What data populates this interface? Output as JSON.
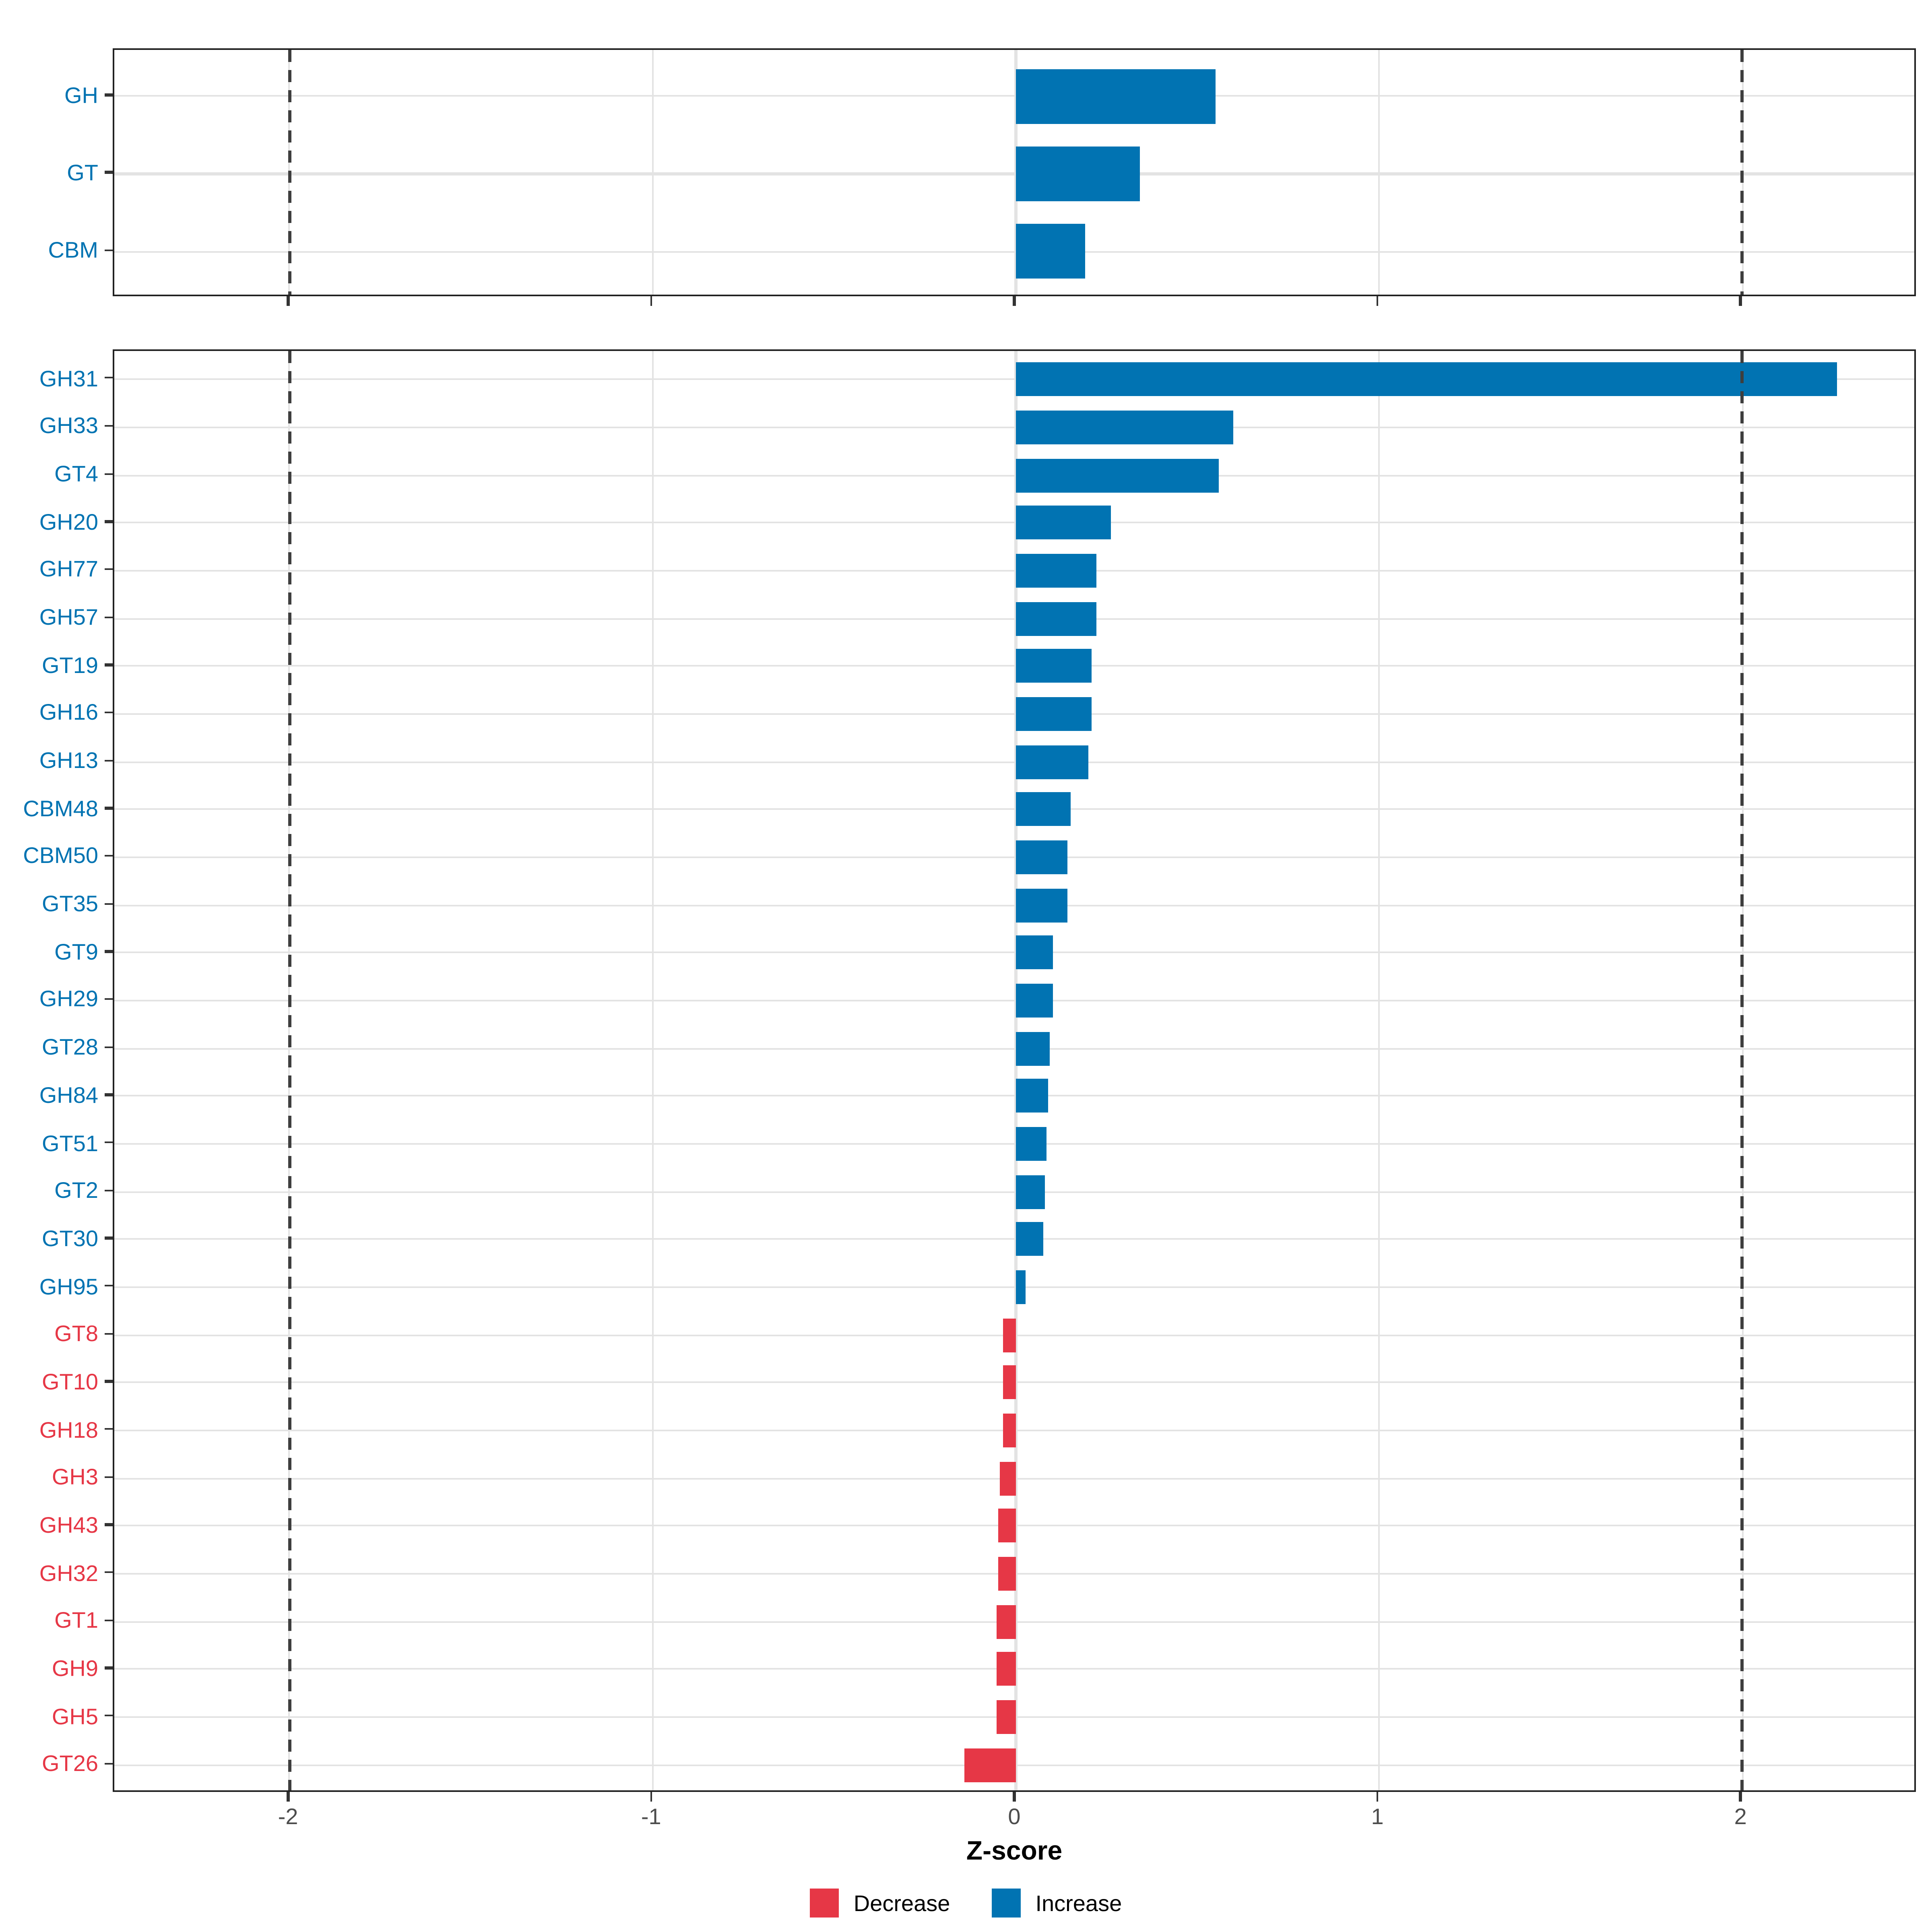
{
  "axis": {
    "title": "Z-score",
    "ticks": [
      -2,
      -1,
      0,
      1,
      2
    ],
    "tick_labels": [
      "-2",
      "-1",
      "0",
      "1",
      "2"
    ],
    "xmin": -2.483,
    "xmax": 2.483,
    "dashed_at": [
      -2,
      2
    ]
  },
  "colors": {
    "increase": "#0173B2",
    "decrease": "#E63746",
    "gridline": "#E3E3E3",
    "dashed_line": "#3E3E3E",
    "panel_border": "#222222",
    "tick_text": "#4D4D4D"
  },
  "legend": {
    "items": [
      {
        "label": "Decrease",
        "color_key": "decrease"
      },
      {
        "label": "Increase",
        "color_key": "increase"
      }
    ]
  },
  "chart_data": [
    {
      "type": "bar",
      "orientation": "horizontal",
      "panel": "cazyme-class-summary",
      "categories": [
        "GH",
        "GT",
        "CBM"
      ],
      "values": [
        0.55,
        0.34,
        0.19
      ],
      "directions": [
        "increase",
        "increase",
        "increase"
      ],
      "xlabel": "Z-score",
      "xlim": [
        -2.483,
        2.483
      ],
      "grid": "major",
      "bar_width_fraction": 0.7
    },
    {
      "type": "bar",
      "orientation": "horizontal",
      "panel": "cazyme-family-detail",
      "categories": [
        "GH31",
        "GH33",
        "GT4",
        "GH20",
        "GH77",
        "GH57",
        "GT19",
        "GH16",
        "GH13",
        "CBM48",
        "CBM50",
        "GT35",
        "GT9",
        "GH29",
        "GT28",
        "GH84",
        "GT51",
        "GT2",
        "GT30",
        "GH95",
        "GT8",
        "GT10",
        "GH18",
        "GH3",
        "GH43",
        "GH32",
        "GT1",
        "GH9",
        "GH5",
        "GT26"
      ],
      "values": [
        2.26,
        0.6,
        0.56,
        0.26,
        0.22,
        0.22,
        0.21,
        0.21,
        0.2,
        0.15,
        0.14,
        0.14,
        0.1,
        0.1,
        0.095,
        0.09,
        0.085,
        0.08,
        0.075,
        0.025,
        -0.035,
        -0.035,
        -0.035,
        -0.045,
        -0.05,
        -0.05,
        -0.055,
        -0.055,
        -0.055,
        -0.14
      ],
      "directions": [
        "increase",
        "increase",
        "increase",
        "increase",
        "increase",
        "increase",
        "increase",
        "increase",
        "increase",
        "increase",
        "increase",
        "increase",
        "increase",
        "increase",
        "increase",
        "increase",
        "increase",
        "increase",
        "increase",
        "increase",
        "decrease",
        "decrease",
        "decrease",
        "decrease",
        "decrease",
        "decrease",
        "decrease",
        "decrease",
        "decrease",
        "decrease"
      ],
      "xlabel": "Z-score",
      "xlim": [
        -2.483,
        2.483
      ],
      "grid": "major",
      "bar_width_fraction": 0.7
    }
  ]
}
